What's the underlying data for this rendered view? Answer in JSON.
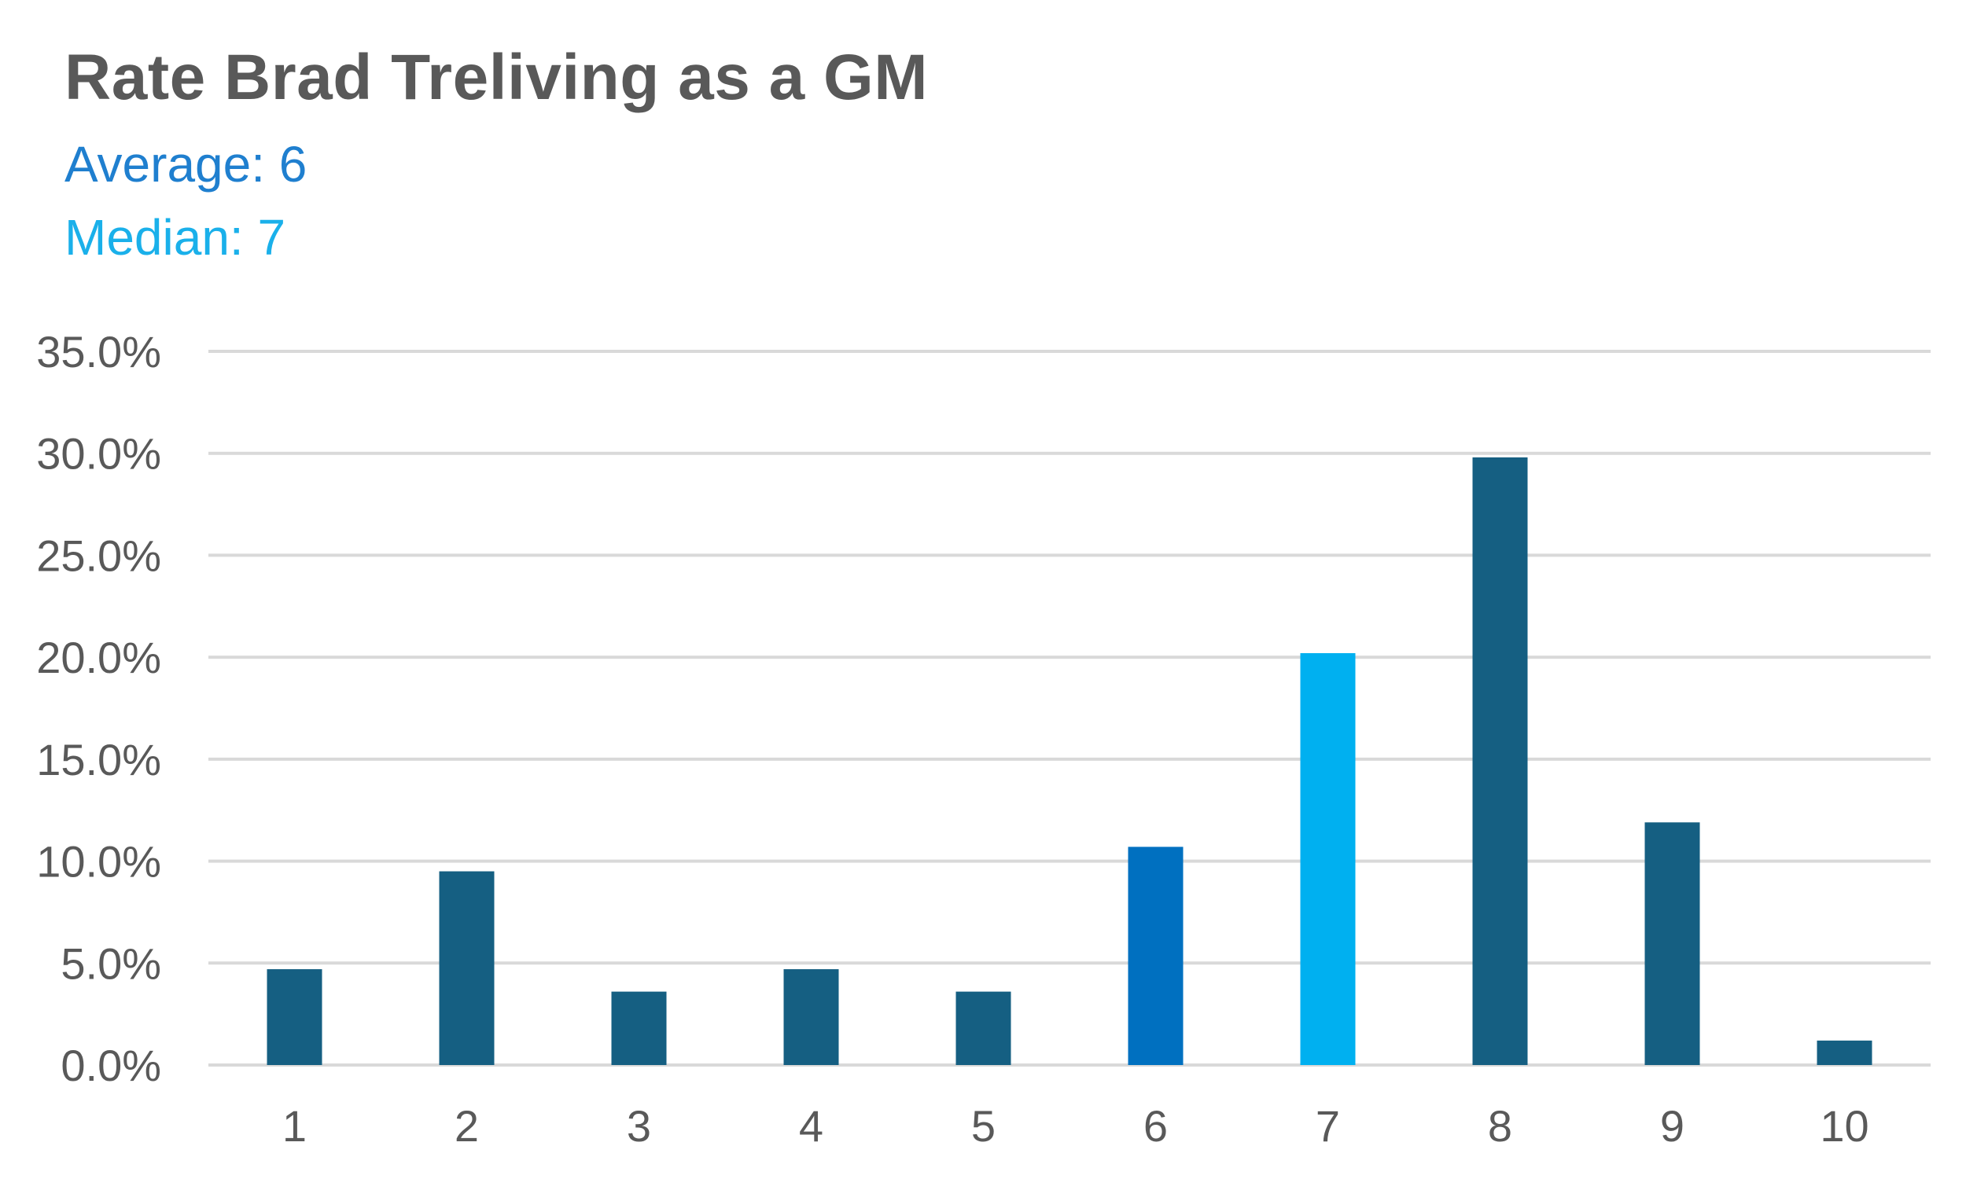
{
  "chart_data": {
    "type": "bar",
    "title": "Rate Brad Treliving as a GM",
    "annotations": [
      {
        "text": "Average: 6",
        "color": "#1f7fcf"
      },
      {
        "text": "Median: 7",
        "color": "#1ab0ea"
      }
    ],
    "categories": [
      "1",
      "2",
      "3",
      "4",
      "5",
      "6",
      "7",
      "8",
      "9",
      "10"
    ],
    "values": [
      4.7,
      9.5,
      3.6,
      4.7,
      3.6,
      10.7,
      20.2,
      29.8,
      11.9,
      1.2
    ],
    "bar_colors": [
      "#155f82",
      "#155f82",
      "#155f82",
      "#155f82",
      "#155f82",
      "#0070c0",
      "#00b0f0",
      "#155f82",
      "#155f82",
      "#155f82"
    ],
    "yticks": [
      "0.0%",
      "5.0%",
      "10.0%",
      "15.0%",
      "20.0%",
      "25.0%",
      "30.0%",
      "35.0%"
    ],
    "ylim": [
      0,
      35
    ],
    "grid": true,
    "legend": "none",
    "xlabel": "",
    "ylabel": ""
  }
}
